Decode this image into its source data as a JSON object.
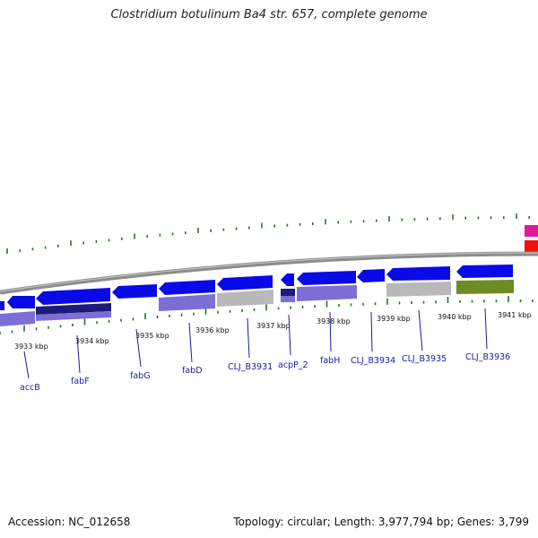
{
  "title": "Clostridium botulinum Ba4 str. 657, complete genome",
  "footer": {
    "accession": "Accession: NC_012658",
    "summary": "Topology: circular; Length: 3,977,794 bp; Genes: 3,799"
  },
  "colors": {
    "backbone": "#8c8c8c",
    "gene_arrow": "#0a0ae6",
    "cds_feature": "#7b6fd6",
    "cds_dark": "#1c1c78",
    "other_feature": "#b9b9b9",
    "olive_feature": "#6e8c25",
    "gc_tick": "#1f7a1f",
    "label": "#1a1aa0",
    "magenta_feature": "#e0189c",
    "red_feature": "#ee1111"
  },
  "kbp_labels": [
    "3933 kbp",
    "3934 kbp",
    "3935 kbp",
    "3936 kbp",
    "3937 kbp",
    "3938 kbp",
    "3939 kbp",
    "3940 kbp",
    "3941 kbp"
  ],
  "gene_labels": [
    "accB",
    "fabF",
    "fabG",
    "fabD",
    "CLJ_B3931",
    "acpP_2",
    "fabH",
    "CLJ_B3934",
    "CLJ_B3935",
    "CLJ_B3936"
  ]
}
